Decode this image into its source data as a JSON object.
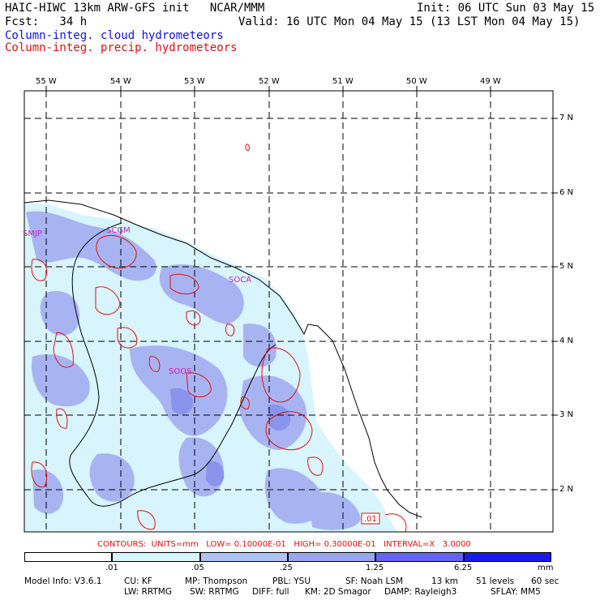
{
  "header": {
    "model": "HAIC-HIWC 13km ARW-GFS init   NCAR/MMM",
    "init": "Init: 06 UTC Sun 03 May 15",
    "fcst": "Fcst:   34 h",
    "valid": "Valid: 16 UTC Mon 04 May 15 (13 LST Mon 04 May 15)",
    "field_cloud": "Column-integ. cloud hydrometeors",
    "field_precip": "Column-integ. precip. hydrometeors"
  },
  "axes": {
    "lon_labels": [
      "55 W",
      "54 W",
      "53 W",
      "52 W",
      "51 W",
      "50 W",
      "49 W"
    ],
    "lat_labels": [
      "7 N",
      "6 N",
      "5 N",
      "4 N",
      "3 N",
      "2 N"
    ]
  },
  "stations": [
    "SMJP",
    "SCGM",
    "SOCA",
    "SOOS"
  ],
  "contour_label": ".01",
  "contours_info": "CONTOURS:  UNITS=mm   LOW= 0.10000E-01   HIGH= 0.30000E-01   INTERVAL=X   3.0000",
  "colorbar": {
    "ticks": [
      ".01",
      ".05",
      ".25",
      "1.25",
      "6.25"
    ],
    "unit": "mm",
    "colors": [
      "#ffffff",
      "#d8f4fc",
      "#b0c4f4",
      "#9aa6ee",
      "#6464ee",
      "#1a1aee"
    ]
  },
  "footer": {
    "line1": [
      "Model Info: V3.6.1",
      "CU: KF",
      "MP: Thompson",
      "PBL: YSU",
      "SF: Noah LSM",
      "13 km",
      "51 levels",
      "60 sec"
    ],
    "line2": [
      "LW: RRTMG",
      "SW: RRTMG",
      "DIFF: full",
      "KM: 2D Smagor",
      "DAMP: Rayleigh3",
      "SFLAY: MM5"
    ]
  }
}
